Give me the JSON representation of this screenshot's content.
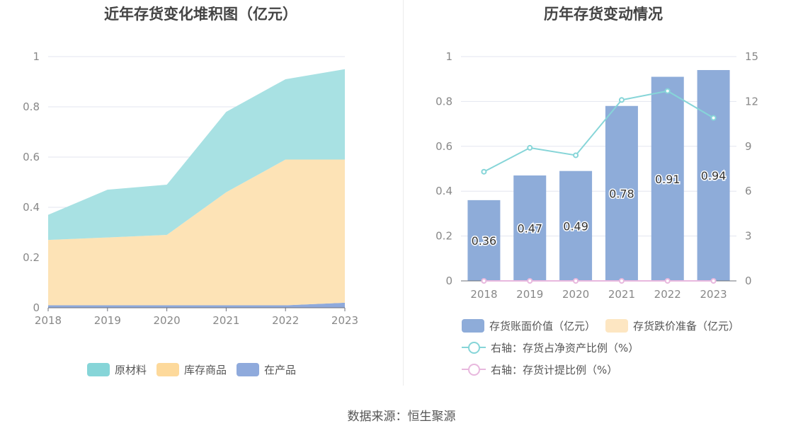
{
  "source": "数据来源：恒生聚源",
  "chart_data": [
    {
      "type": "area",
      "stacked": true,
      "title": "近年存货变化堆积图（亿元）",
      "categories": [
        "2018",
        "2019",
        "2020",
        "2021",
        "2022",
        "2023"
      ],
      "ylim": [
        0,
        1
      ],
      "yticks": [
        "0",
        "0.2",
        "0.4",
        "0.6",
        "0.8",
        "1"
      ],
      "yticks_values": [
        0,
        0.2,
        0.4,
        0.6,
        0.8,
        1
      ],
      "series": [
        {
          "name": "在产品",
          "color": "#8faadc",
          "values": [
            0.01,
            0.01,
            0.01,
            0.01,
            0.01,
            0.02
          ]
        },
        {
          "name": "库存商品",
          "color": "#fde3b6",
          "values": [
            0.26,
            0.27,
            0.28,
            0.45,
            0.58,
            0.57
          ]
        },
        {
          "name": "原材料",
          "color": "#a8e1e3",
          "values": [
            0.1,
            0.19,
            0.2,
            0.32,
            0.32,
            0.36
          ]
        }
      ],
      "legend": [
        "原材料",
        "库存商品",
        "在产品"
      ],
      "legend_colors": [
        "#86d5d8",
        "#fdd99b",
        "#8faadc"
      ],
      "legend_position": "bottom"
    },
    {
      "type": "bar",
      "title": "历年存货变动情况",
      "categories": [
        "2018",
        "2019",
        "2020",
        "2021",
        "2022",
        "2023"
      ],
      "ylim": [
        0,
        1
      ],
      "yticks": [
        "0",
        "0.2",
        "0.4",
        "0.6",
        "0.8",
        "1"
      ],
      "yticks_values": [
        0,
        0.2,
        0.4,
        0.6,
        0.8,
        1
      ],
      "y2lim": [
        0,
        15
      ],
      "y2ticks": [
        "0",
        "3",
        "6",
        "9",
        "12",
        "15"
      ],
      "y2ticks_values": [
        0,
        3,
        6,
        9,
        12,
        15
      ],
      "series": [
        {
          "name": "存货账面价值（亿元）",
          "kind": "bar",
          "color": "#8eacd9",
          "values": [
            0.36,
            0.47,
            0.49,
            0.78,
            0.91,
            0.94
          ],
          "labels": [
            "0.36",
            "0.47",
            "0.49",
            "0.78",
            "0.91",
            "0.94"
          ]
        },
        {
          "name": "存货跌价准备（亿元）",
          "kind": "bar",
          "color": "#fde6c2",
          "values": [
            0,
            0,
            0,
            0,
            0,
            0
          ]
        },
        {
          "name": "右轴：存货占净资产比例（%）",
          "kind": "line",
          "axis": "right",
          "color": "#86d5d8",
          "values": [
            7.3,
            8.9,
            8.4,
            12.1,
            12.7,
            10.9
          ]
        },
        {
          "name": "右轴：存货计提比例（%）",
          "kind": "line",
          "axis": "right",
          "color": "#e8b8de",
          "values": [
            0,
            0,
            0,
            0,
            0,
            0
          ]
        }
      ],
      "legend_position": "bottom"
    }
  ]
}
